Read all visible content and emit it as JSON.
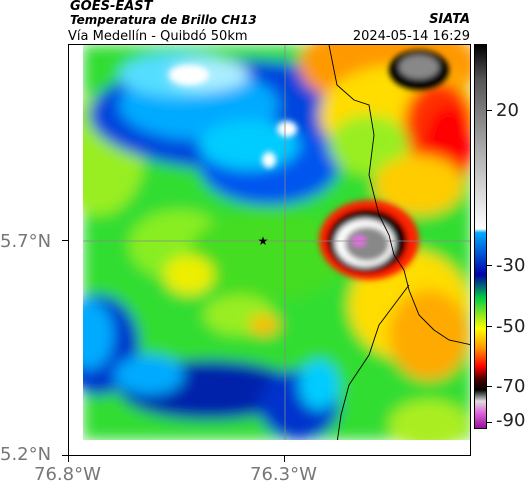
{
  "header": {
    "satellite": "GOES-EAST",
    "product": "Temperatura de Brillo CH13",
    "organization": "SIATA",
    "region": "Vía Medellín - Quibdó 50km",
    "timestamp": "2024-05-14 16:29"
  },
  "axes": {
    "lon_labels": [
      "76.8°W",
      "76.3°W"
    ],
    "lat_labels": [
      "5.7°N",
      "5.2°N"
    ]
  },
  "colorbar": {
    "labels": [
      "20",
      "-30",
      "-50",
      "-70",
      "-90"
    ],
    "colors": [
      "#000000",
      "#555555",
      "#aaaaaa",
      "#ffffff",
      "#00aaff",
      "#0000aa",
      "#00cc44",
      "#ffff00",
      "#ff9900",
      "#ff0000",
      "#550000",
      "#000000",
      "#dddddd",
      "#dd66dd",
      "#991199"
    ]
  },
  "map": {
    "marker_icon": "star-icon"
  }
}
